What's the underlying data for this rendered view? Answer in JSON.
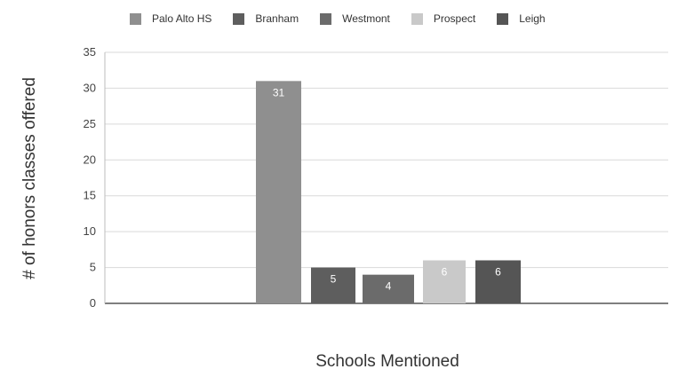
{
  "chart_data": {
    "type": "bar",
    "title": "",
    "xlabel": "Schools Mentioned",
    "ylabel": "# of honors classes offered",
    "ylim": [
      0,
      35
    ],
    "yticks": [
      0,
      5,
      10,
      15,
      20,
      25,
      30,
      35
    ],
    "grid": true,
    "legend_position": "top",
    "series": [
      {
        "name": "Palo Alto HS",
        "value": 31,
        "color": "#8f8f8f"
      },
      {
        "name": "Branham",
        "value": 5,
        "color": "#5e5e5e"
      },
      {
        "name": "Westmont",
        "value": 4,
        "color": "#6b6b6b"
      },
      {
        "name": "Prospect",
        "value": 6,
        "color": "#c9c9c9"
      },
      {
        "name": "Leigh",
        "value": 6,
        "color": "#555555"
      }
    ]
  }
}
